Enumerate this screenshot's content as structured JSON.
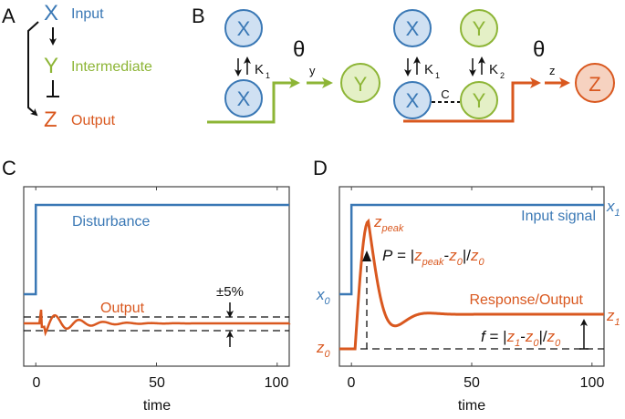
{
  "colors": {
    "x": "#3a78b5",
    "y": "#8db536",
    "z": "#d9581f",
    "black": "#111111",
    "axis": "#444444",
    "x_fill": "#cfe0f2",
    "y_fill": "#e4f0c6"
  },
  "panel_a": {
    "label": "A",
    "nodes": [
      {
        "letter": "X",
        "name": "Input"
      },
      {
        "letter": "Y",
        "name": "Intermediate"
      },
      {
        "letter": "Z",
        "name": "Output"
      }
    ]
  },
  "panel_b": {
    "label": "B",
    "left": {
      "free_node": "X",
      "bound_node": "X",
      "constant": "K",
      "constant_sub": "1",
      "theta": "θ",
      "theta_sub": "y",
      "product": "Y"
    },
    "right": {
      "free_x": "X",
      "free_y": "Y",
      "bound_x": "X",
      "bound_y": "Y",
      "k1": "K",
      "k1_sub": "1",
      "k2": "K",
      "k2_sub": "2",
      "coop": "C",
      "theta": "θ",
      "theta_sub": "z",
      "product": "Z"
    }
  },
  "chart_data": [
    {
      "panel": "C",
      "type": "line",
      "xlabel": "time",
      "xticks": [
        0,
        50,
        100
      ],
      "xlim": [
        -5,
        105
      ],
      "series": [
        {
          "name": "Disturbance",
          "kind": "step",
          "step_time": 0,
          "before": 0.35,
          "after": 1.0
        },
        {
          "name": "Output",
          "kind": "damped-oscillation",
          "baseline": 0.0,
          "spike_time": 2,
          "settle_time": 50
        }
      ],
      "band_label": "±5%",
      "band": [
        -0.05,
        0.05
      ]
    },
    {
      "panel": "D",
      "type": "line",
      "xlabel": "time",
      "xticks": [
        0,
        50,
        100
      ],
      "xlim": [
        -5,
        105
      ],
      "series": [
        {
          "name": "Input signal",
          "kind": "step",
          "step_time": 0,
          "start_label": "x",
          "start_sub": "0",
          "end_label": "x",
          "end_sub": "1"
        },
        {
          "name": "Response/Output",
          "kind": "overshoot",
          "start_label": "z",
          "start_sub": "0",
          "end_label": "z",
          "end_sub": "1",
          "peak_label": "z",
          "peak_sub": "peak",
          "peak_time": 7
        }
      ],
      "formula_p": {
        "lhs": "P",
        "text": "= |z_peak - z_0| / z_0"
      },
      "formula_f": {
        "lhs": "f",
        "text": "= |z_1 - z_0| / z_0"
      }
    }
  ],
  "panel_c": {
    "label": "C",
    "disturbance_label": "Disturbance",
    "output_label": "Output",
    "band_label": "±5%",
    "xlabel": "time",
    "ticks": [
      "0",
      "50",
      "100"
    ]
  },
  "panel_d": {
    "label": "D",
    "input_label": "Input signal",
    "output_label": "Response/Output",
    "xlabel": "time",
    "ticks": [
      "0",
      "50",
      "100"
    ],
    "x0": "x",
    "x0_sub": "0",
    "x1": "x",
    "x1_sub": "1",
    "z0": "z",
    "z0_sub": "0",
    "z1": "z",
    "z1_sub": "1",
    "zpeak": "z",
    "zpeak_sub": "peak",
    "p_lhs": "P",
    "f_lhs": "f",
    "eq": "=",
    "bar": "|",
    "slash": "|/",
    "minus": "-",
    "p_sub0": "0",
    "p_subpeak": "peak",
    "f_sub1": "1",
    "f_sub0": "0"
  }
}
